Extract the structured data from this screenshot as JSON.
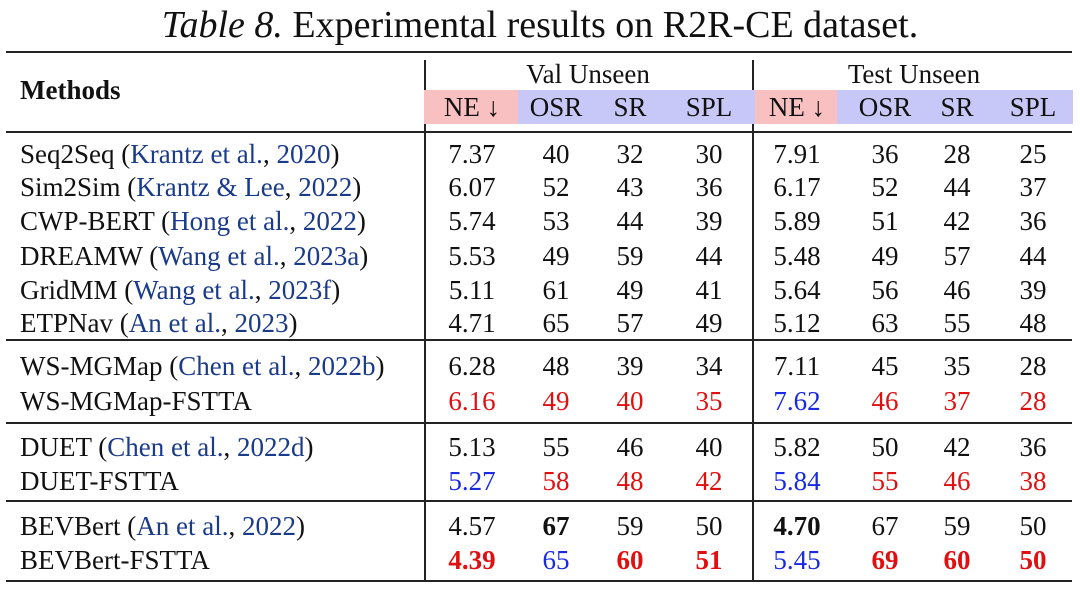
{
  "caption": {
    "label": "Table 8.",
    "text": "Experimental results on R2R-CE dataset."
  },
  "header": {
    "methods": "Methods",
    "group1": "Val Unseen",
    "group2": "Test Unseen",
    "metrics": [
      {
        "label": "NE ↓",
        "bg": "#f8c0c0"
      },
      {
        "label": "OSR",
        "bg": "#c8c8f8"
      },
      {
        "label": "SR",
        "bg": "#c8c8f8"
      },
      {
        "label": "SPL",
        "bg": "#c8c8f8"
      },
      {
        "label": "NE ↓",
        "bg": "#f8c0c0"
      },
      {
        "label": "OSR",
        "bg": "#c8c8f8"
      },
      {
        "label": "SR",
        "bg": "#c8c8f8"
      },
      {
        "label": "SPL",
        "bg": "#c8c8f8"
      }
    ]
  },
  "colors": {
    "red": "#e01010",
    "blue": "#1a2ae0",
    "cite": "#1a3a8a",
    "pink_header": "#f8c0c0",
    "lavender_header": "#c8c8f8"
  },
  "groups": [
    {
      "rows": [
        {
          "method": "Seq2Seq",
          "cite": {
            "open": "(",
            "authors": "Krantz et al.",
            "sep": ", ",
            "year": "2020",
            "close": ")"
          },
          "cells": [
            {
              "v": "7.37"
            },
            {
              "v": "40"
            },
            {
              "v": "32"
            },
            {
              "v": "30"
            },
            {
              "v": "7.91"
            },
            {
              "v": "36"
            },
            {
              "v": "28"
            },
            {
              "v": "25"
            }
          ]
        },
        {
          "method": "Sim2Sim",
          "cite": {
            "open": "(",
            "authors": "Krantz & Lee",
            "sep": ", ",
            "year": "2022",
            "close": ")"
          },
          "cells": [
            {
              "v": "6.07"
            },
            {
              "v": "52"
            },
            {
              "v": "43"
            },
            {
              "v": "36"
            },
            {
              "v": "6.17"
            },
            {
              "v": "52"
            },
            {
              "v": "44"
            },
            {
              "v": "37"
            }
          ]
        },
        {
          "method": "CWP-BERT",
          "cite": {
            "open": "(",
            "authors": "Hong et al.",
            "sep": ", ",
            "year": "2022",
            "close": ")"
          },
          "cells": [
            {
              "v": "5.74"
            },
            {
              "v": "53"
            },
            {
              "v": "44"
            },
            {
              "v": "39"
            },
            {
              "v": "5.89"
            },
            {
              "v": "51"
            },
            {
              "v": "42"
            },
            {
              "v": "36"
            }
          ]
        },
        {
          "method": "DREAMW",
          "cite": {
            "open": "(",
            "authors": "Wang et al.",
            "sep": ", ",
            "year": "2023a",
            "close": ")"
          },
          "cells": [
            {
              "v": "5.53"
            },
            {
              "v": "49"
            },
            {
              "v": "59"
            },
            {
              "v": "44"
            },
            {
              "v": "5.48"
            },
            {
              "v": "49"
            },
            {
              "v": "57"
            },
            {
              "v": "44"
            }
          ]
        },
        {
          "method": "GridMM",
          "cite": {
            "open": "(",
            "authors": "Wang et al.",
            "sep": ", ",
            "year": "2023f",
            "close": ")"
          },
          "cells": [
            {
              "v": "5.11"
            },
            {
              "v": "61"
            },
            {
              "v": "49"
            },
            {
              "v": "41"
            },
            {
              "v": "5.64"
            },
            {
              "v": "56"
            },
            {
              "v": "46"
            },
            {
              "v": "39"
            }
          ]
        },
        {
          "method": "ETPNav",
          "cite": {
            "open": "(",
            "authors": "An et al.",
            "sep": ", ",
            "year": "2023",
            "close": ")"
          },
          "cells": [
            {
              "v": "4.71"
            },
            {
              "v": "65"
            },
            {
              "v": "57"
            },
            {
              "v": "49"
            },
            {
              "v": "5.12"
            },
            {
              "v": "63"
            },
            {
              "v": "55"
            },
            {
              "v": "48"
            }
          ]
        }
      ]
    },
    {
      "rows": [
        {
          "method": "WS-MGMap",
          "cite": {
            "open": "(",
            "authors": "Chen et al.",
            "sep": ", ",
            "year": "2022b",
            "close": ")"
          },
          "cells": [
            {
              "v": "6.28"
            },
            {
              "v": "48"
            },
            {
              "v": "39"
            },
            {
              "v": "34"
            },
            {
              "v": "7.11"
            },
            {
              "v": "45"
            },
            {
              "v": "35"
            },
            {
              "v": "28"
            }
          ]
        },
        {
          "method": "WS-MGMap-FSTTA",
          "cite": null,
          "cells": [
            {
              "v": "6.16",
              "c": "red"
            },
            {
              "v": "49",
              "c": "red"
            },
            {
              "v": "40",
              "c": "red"
            },
            {
              "v": "35",
              "c": "red"
            },
            {
              "v": "7.62",
              "c": "blue"
            },
            {
              "v": "46",
              "c": "red"
            },
            {
              "v": "37",
              "c": "red"
            },
            {
              "v": "28",
              "c": "red"
            }
          ]
        }
      ]
    },
    {
      "rows": [
        {
          "method": "DUET",
          "cite": {
            "open": "(",
            "authors": "Chen et al.",
            "sep": ", ",
            "year": "2022d",
            "close": ")"
          },
          "cells": [
            {
              "v": "5.13"
            },
            {
              "v": "55"
            },
            {
              "v": "46"
            },
            {
              "v": "40"
            },
            {
              "v": "5.82"
            },
            {
              "v": "50"
            },
            {
              "v": "42"
            },
            {
              "v": "36"
            }
          ]
        },
        {
          "method": "DUET-FSTTA",
          "cite": null,
          "cells": [
            {
              "v": "5.27",
              "c": "blue"
            },
            {
              "v": "58",
              "c": "red"
            },
            {
              "v": "48",
              "c": "red"
            },
            {
              "v": "42",
              "c": "red"
            },
            {
              "v": "5.84",
              "c": "blue"
            },
            {
              "v": "55",
              "c": "red"
            },
            {
              "v": "46",
              "c": "red"
            },
            {
              "v": "38",
              "c": "red"
            }
          ]
        }
      ]
    },
    {
      "rows": [
        {
          "method": "BEVBert",
          "cite": {
            "open": "(",
            "authors": "An et al.",
            "sep": ", ",
            "year": "2022",
            "close": ")"
          },
          "cells": [
            {
              "v": "4.57"
            },
            {
              "v": "67",
              "b": true
            },
            {
              "v": "59"
            },
            {
              "v": "50"
            },
            {
              "v": "4.70",
              "b": true
            },
            {
              "v": "67"
            },
            {
              "v": "59"
            },
            {
              "v": "50"
            }
          ]
        },
        {
          "method": "BEVBert-FSTTA",
          "cite": null,
          "cells": [
            {
              "v": "4.39",
              "c": "red",
              "b": true
            },
            {
              "v": "65",
              "c": "blue"
            },
            {
              "v": "60",
              "c": "red",
              "b": true
            },
            {
              "v": "51",
              "c": "red",
              "b": true
            },
            {
              "v": "5.45",
              "c": "blue"
            },
            {
              "v": "69",
              "c": "red",
              "b": true
            },
            {
              "v": "60",
              "c": "red",
              "b": true
            },
            {
              "v": "50",
              "c": "red",
              "b": true
            }
          ]
        }
      ]
    }
  ]
}
